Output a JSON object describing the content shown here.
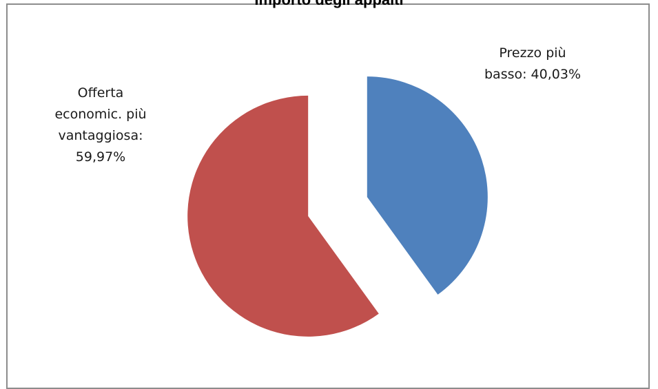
{
  "chart_data": {
    "type": "pie",
    "title": "Importo degli appalti",
    "exploded": true,
    "slices": [
      {
        "name": "Prezzo più basso",
        "value": 40.03,
        "label_lines": [
          "Prezzo più",
          "basso: 40,03%"
        ],
        "color": "#4F81BD"
      },
      {
        "name": "Offerta economic. più vantaggiosa",
        "value": 59.97,
        "label_lines": [
          "Offerta",
          "economic. più",
          "vantaggiosa:",
          "59,97%"
        ],
        "color": "#C0504D"
      }
    ]
  }
}
